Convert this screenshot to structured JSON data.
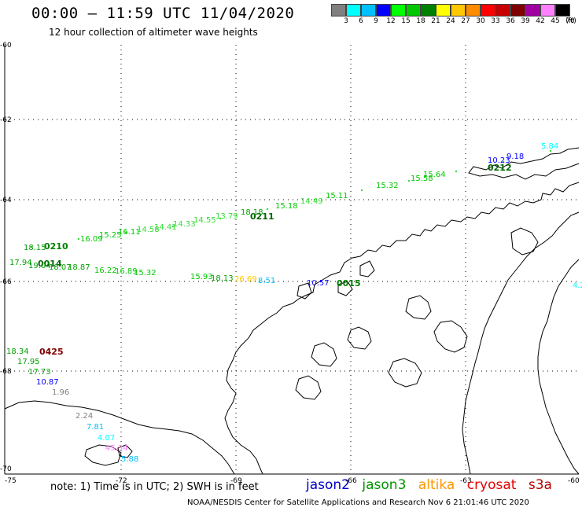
{
  "title": "00:00 – 11:59 UTC 11/04/2020",
  "subtitle": "12 hour collection of altimeter wave heights",
  "scale": {
    "colors": [
      "#808080",
      "#00ffff",
      "#00c0ff",
      "#0000ff",
      "#00ff00",
      "#00c800",
      "#008000",
      "#ffff00",
      "#ffc800",
      "#ff8c00",
      "#ff0000",
      "#c80000",
      "#800000",
      "#a000a0",
      "#ff80ff",
      "#000000"
    ],
    "labels": [
      "3",
      "6",
      "9",
      "12",
      "15",
      "18",
      "21",
      "24",
      "27",
      "30",
      "33",
      "36",
      "39",
      "42",
      "45",
      "70"
    ],
    "unit": "(ft)"
  },
  "axes": {
    "lat_labels": [
      "-60",
      "-62",
      "-64",
      "-66",
      "-68",
      "-70"
    ],
    "lon_labels": [
      "-75",
      "-72",
      "-69",
      "-66",
      "-63",
      "-60"
    ]
  },
  "note": "note: 1) Time is in UTC; 2) SWH is in feet",
  "legend": [
    {
      "name": "jason2",
      "color": "#0000c8"
    },
    {
      "name": "jason3",
      "color": "#009600"
    },
    {
      "name": "altika",
      "color": "#ff9600"
    },
    {
      "name": "cryosat",
      "color": "#e60000"
    },
    {
      "name": "s3a",
      "color": "#b40000"
    }
  ],
  "credit": "NOAA/NESDIS Center for Satellite Applications and Research    Nov  6 21:01:46 UTC 2020",
  "time_labels": [
    {
      "text": "0210",
      "color": "#008000"
    },
    {
      "text": "0014",
      "color": "#006400"
    },
    {
      "text": "0211",
      "color": "#006400"
    },
    {
      "text": "0212",
      "color": "#006400"
    },
    {
      "text": "0015",
      "color": "#008000"
    },
    {
      "text": "0425",
      "color": "#800000"
    }
  ],
  "wave_labels": [
    {
      "text": "18.15",
      "color": "#00a000"
    },
    {
      "text": "17.94",
      "color": "#00a000"
    },
    {
      "text": "19.04",
      "color": "#00a000"
    },
    {
      "text": "18.07",
      "color": "#00a000"
    },
    {
      "text": "18.87",
      "color": "#00a000"
    },
    {
      "text": "16.22",
      "color": "#00c800"
    },
    {
      "text": "16.89",
      "color": "#00c800"
    },
    {
      "text": "15.32",
      "color": "#00c800"
    },
    {
      "text": "15.93",
      "color": "#00c800"
    },
    {
      "text": "18.13",
      "color": "#00a000"
    },
    {
      "text": "26.69",
      "color": "#ffc800"
    },
    {
      "text": "8.51",
      "color": "#00c0ff"
    },
    {
      "text": "10.57",
      "color": "#0000ff"
    },
    {
      "text": "16.09",
      "color": "#00c800"
    },
    {
      "text": "15.25",
      "color": "#00c800"
    },
    {
      "text": "16.11",
      "color": "#00c800"
    },
    {
      "text": "14.58",
      "color": "#33dd33"
    },
    {
      "text": "14.41",
      "color": "#33dd33"
    },
    {
      "text": "14.33",
      "color": "#33dd33"
    },
    {
      "text": "14.55",
      "color": "#33dd33"
    },
    {
      "text": "13.79",
      "color": "#33dd33"
    },
    {
      "text": "18.18",
      "color": "#00a000"
    },
    {
      "text": "15.18",
      "color": "#00c800"
    },
    {
      "text": "14.49",
      "color": "#33dd33"
    },
    {
      "text": "15.11",
      "color": "#00c800"
    },
    {
      "text": "15.32",
      "color": "#00c800"
    },
    {
      "text": "15.58",
      "color": "#00c800"
    },
    {
      "text": "15.64",
      "color": "#00c800"
    },
    {
      "text": "10.23",
      "color": "#0000ff"
    },
    {
      "text": "9.18",
      "color": "#0000ff"
    },
    {
      "text": "5.84",
      "color": "#00ffff"
    },
    {
      "text": "18.34",
      "color": "#00a000"
    },
    {
      "text": "17.95",
      "color": "#00a000"
    },
    {
      "text": "17.73",
      "color": "#00a000"
    },
    {
      "text": "10.87",
      "color": "#0000ff"
    },
    {
      "text": "1.96",
      "color": "#808080"
    },
    {
      "text": "2.24",
      "color": "#808080"
    },
    {
      "text": "7.81",
      "color": "#00c0ff"
    },
    {
      "text": "4.07",
      "color": "#00ffff"
    },
    {
      "text": "45.34",
      "color": "#ff80ff"
    },
    {
      "text": "5.88",
      "color": "#00c0ff"
    },
    {
      "text": "4.2",
      "color": "#00ffff"
    }
  ]
}
